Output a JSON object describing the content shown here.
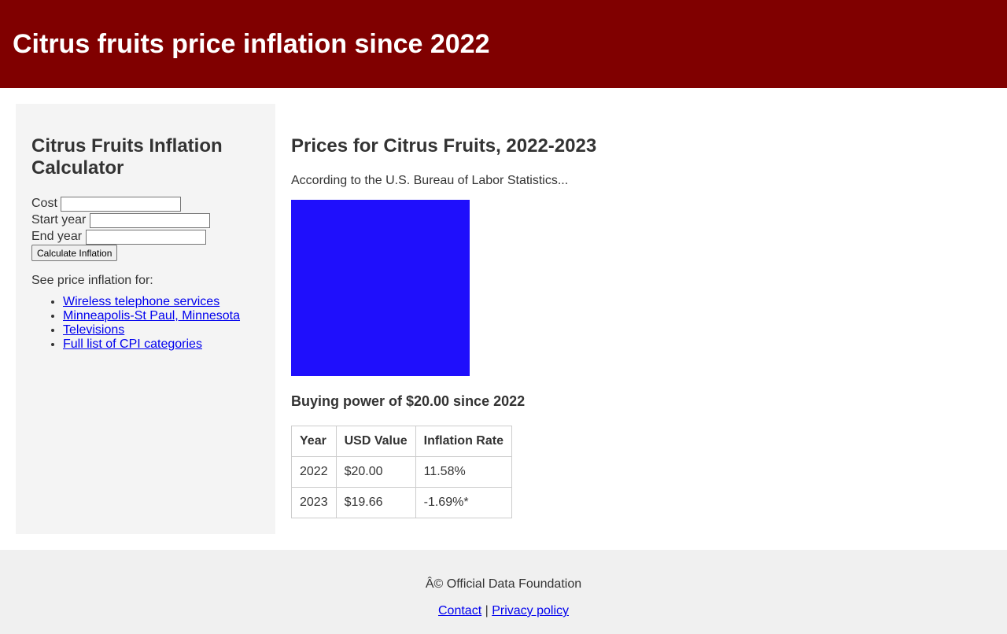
{
  "header": {
    "title": "Citrus fruits price inflation since 2022"
  },
  "sidebar": {
    "title": "Citrus Fruits Inflation Calculator",
    "fields": [
      {
        "label": "Cost",
        "value": ""
      },
      {
        "label": "Start year",
        "value": ""
      },
      {
        "label": "End year",
        "value": ""
      }
    ],
    "button_label": "Calculate Inflation",
    "see_label": "See price inflation for:",
    "links": [
      "Wireless telephone services",
      "Minneapolis-St Paul, Minnesota",
      "Televisions",
      "Full list of CPI categories"
    ]
  },
  "main": {
    "title": "Prices for Citrus Fruits, 2022-2023",
    "source_text": "According to the U.S. Bureau of Labor Statistics...",
    "chart_color": "#1f0ffc",
    "buying_power_title": "Buying power of $20.00 since 2022",
    "table": {
      "headers": [
        "Year",
        "USD Value",
        "Inflation Rate"
      ],
      "rows": [
        [
          "2022",
          "$20.00",
          "11.58%"
        ],
        [
          "2023",
          "$19.66",
          "-1.69%*"
        ]
      ]
    }
  },
  "footer": {
    "copyright": "Â© Official Data Foundation",
    "contact": "Contact",
    "separator": " | ",
    "privacy": "Privacy policy"
  },
  "colors": {
    "header_bg": "#800000",
    "sidebar_bg": "#f4f4f4",
    "footer_bg": "#f0f0f0",
    "link": "#0000ee"
  }
}
